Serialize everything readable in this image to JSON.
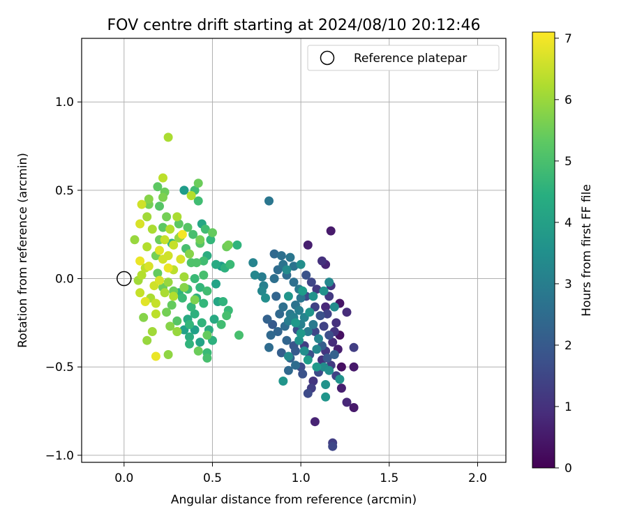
{
  "chart_data": {
    "type": "scatter",
    "title": "FOV centre drift starting at 2024/08/10 20:12:46",
    "xlabel": "Angular distance from reference (arcmin)",
    "ylabel": "Rotation from reference (arcmin)",
    "xlim": [
      -0.24,
      2.16
    ],
    "ylim": [
      -1.04,
      1.36
    ],
    "x_ticks": [
      0.0,
      0.5,
      1.0,
      1.5,
      2.0
    ],
    "x_tick_labels": [
      "0.0",
      "0.5",
      "1.0",
      "1.5",
      "2.0"
    ],
    "y_ticks": [
      -1.0,
      -0.5,
      0.0,
      0.5,
      1.0
    ],
    "y_tick_labels": [
      "−1.0",
      "−0.5",
      "0.0",
      "0.5",
      "1.0"
    ],
    "grid": true,
    "legend": {
      "position": "top-right",
      "label": "Reference platepar"
    },
    "reference_point": {
      "x": 0.0,
      "y": 0.0
    },
    "colorbar": {
      "label": "Hours from first FF file",
      "colormap": "viridis",
      "range": [
        0,
        7.1
      ],
      "ticks": [
        0,
        1,
        2,
        3,
        4,
        5,
        6,
        7
      ],
      "tick_labels": [
        "0",
        "1",
        "2",
        "3",
        "4",
        "5",
        "6",
        "7"
      ]
    },
    "points": [
      [
        1.17,
        0.27,
        0.5
      ],
      [
        1.04,
        0.19,
        0.6
      ],
      [
        1.22,
        -0.14,
        0.4
      ],
      [
        1.22,
        -0.32,
        0.3
      ],
      [
        1.23,
        -0.5,
        0.3
      ],
      [
        1.3,
        -0.5,
        0.5
      ],
      [
        1.23,
        -0.62,
        0.6
      ],
      [
        1.3,
        -0.73,
        0.5
      ],
      [
        1.26,
        -0.7,
        0.8
      ],
      [
        1.3,
        -0.39,
        1.3
      ],
      [
        1.26,
        -0.19,
        0.9
      ],
      [
        1.21,
        -0.4,
        0.6
      ],
      [
        1.08,
        -0.81,
        0.7
      ],
      [
        1.18,
        -0.93,
        1.3
      ],
      [
        1.18,
        -0.95,
        1.5
      ],
      [
        1.14,
        0.08,
        0.7
      ],
      [
        1.12,
        0.1,
        1.0
      ],
      [
        1.17,
        -0.04,
        1.1
      ],
      [
        1.16,
        -0.1,
        1.2
      ],
      [
        1.14,
        -0.16,
        0.8
      ],
      [
        1.09,
        -0.06,
        1.2
      ],
      [
        1.2,
        -0.25,
        1.0
      ],
      [
        1.19,
        -0.3,
        1.1
      ],
      [
        1.18,
        -0.36,
        0.9
      ],
      [
        1.14,
        -0.41,
        1.1
      ],
      [
        1.12,
        -0.46,
        1.0
      ],
      [
        1.17,
        -0.49,
        1.2
      ],
      [
        1.07,
        -0.58,
        1.1
      ],
      [
        1.06,
        -0.62,
        1.3
      ],
      [
        1.04,
        -0.65,
        1.6
      ],
      [
        1.1,
        -0.53,
        1.6
      ],
      [
        1.2,
        -0.55,
        1.4
      ],
      [
        1.15,
        -0.2,
        1.4
      ],
      [
        1.08,
        -0.3,
        1.5
      ],
      [
        1.13,
        -0.27,
        1.4
      ],
      [
        1.02,
        -0.38,
        1.3
      ],
      [
        1.05,
        -0.43,
        1.7
      ],
      [
        1.0,
        -0.5,
        1.6
      ],
      [
        1.01,
        -0.54,
        1.8
      ],
      [
        0.98,
        -0.29,
        1.7
      ],
      [
        1.03,
        -0.1,
        1.6
      ],
      [
        1.06,
        -0.02,
        1.5
      ],
      [
        1.03,
        0.02,
        1.8
      ],
      [
        1.08,
        -0.16,
        1.4
      ],
      [
        1.11,
        -0.21,
        1.8
      ],
      [
        1.16,
        -0.32,
        1.7
      ],
      [
        1.12,
        -0.38,
        2.1
      ],
      [
        1.19,
        -0.43,
        2.2
      ],
      [
        1.15,
        -0.45,
        1.9
      ],
      [
        0.97,
        -0.41,
        2.0
      ],
      [
        0.94,
        -0.45,
        2.2
      ],
      [
        0.97,
        -0.49,
        2.5
      ],
      [
        0.93,
        -0.52,
        2.4
      ],
      [
        0.96,
        -0.38,
        1.9
      ],
      [
        0.92,
        -0.35,
        2.3
      ],
      [
        0.89,
        -0.42,
        2.1
      ],
      [
        0.84,
        -0.26,
        2.0
      ],
      [
        0.81,
        -0.23,
        2.2
      ],
      [
        0.83,
        -0.32,
        2.4
      ],
      [
        0.82,
        -0.39,
        2.5
      ],
      [
        0.87,
        -0.3,
        2.3
      ],
      [
        0.91,
        -0.27,
        2.5
      ],
      [
        0.88,
        -0.2,
        2.4
      ],
      [
        0.9,
        -0.16,
        2.6
      ],
      [
        0.86,
        -0.1,
        2.3
      ],
      [
        0.85,
        0.0,
        2.6
      ],
      [
        0.87,
        0.05,
        2.5
      ],
      [
        0.9,
        0.08,
        2.7
      ],
      [
        0.85,
        0.14,
        2.4
      ],
      [
        0.89,
        0.13,
        2.6
      ],
      [
        0.94,
        0.12,
        2.8
      ],
      [
        0.96,
        0.07,
        2.7
      ],
      [
        0.92,
        0.02,
        2.5
      ],
      [
        0.96,
        -0.02,
        2.6
      ],
      [
        0.99,
        -0.06,
        2.9
      ],
      [
        1.0,
        -0.11,
        2.8
      ],
      [
        0.97,
        -0.15,
        2.7
      ],
      [
        0.94,
        -0.2,
        2.9
      ],
      [
        0.93,
        -0.24,
        3.0
      ],
      [
        0.96,
        -0.22,
        3.1
      ],
      [
        0.99,
        -0.18,
        3.0
      ],
      [
        1.02,
        -0.22,
        3.2
      ],
      [
        1.0,
        -0.26,
        3.1
      ],
      [
        1.04,
        -0.3,
        3.0
      ],
      [
        1.07,
        -0.26,
        2.9
      ],
      [
        1.1,
        -0.34,
        3.2
      ],
      [
        1.09,
        -0.4,
        3.3
      ],
      [
        1.13,
        -0.5,
        3.4
      ],
      [
        1.16,
        -0.52,
        3.5
      ],
      [
        1.14,
        -0.6,
        3.6
      ],
      [
        1.14,
        -0.67,
        3.7
      ],
      [
        1.22,
        -0.57,
        3.6
      ],
      [
        1.16,
        -0.02,
        3.3
      ],
      [
        1.13,
        -0.07,
        3.6
      ],
      [
        1.19,
        -0.16,
        3.4
      ],
      [
        0.73,
        0.09,
        3.2
      ],
      [
        0.74,
        0.02,
        3.3
      ],
      [
        0.78,
        0.01,
        3.0
      ],
      [
        0.79,
        -0.04,
        3.1
      ],
      [
        0.78,
        -0.07,
        3.3
      ],
      [
        0.8,
        -0.11,
        3.5
      ],
      [
        0.82,
        0.44,
        2.8
      ],
      [
        0.9,
        -0.58,
        3.7
      ],
      [
        0.93,
        -0.44,
        3.4
      ],
      [
        0.99,
        -0.35,
        3.6
      ],
      [
        1.0,
        -0.31,
        3.8
      ],
      [
        1.02,
        -0.41,
        3.5
      ],
      [
        1.0,
        0.08,
        3.5
      ],
      [
        0.92,
        0.05,
        3.4
      ],
      [
        0.93,
        -0.1,
        3.7
      ],
      [
        0.97,
        -0.25,
        3.8
      ],
      [
        1.05,
        -0.19,
        3.7
      ],
      [
        1.01,
        -0.07,
        3.9
      ],
      [
        1.07,
        -0.1,
        3.6
      ],
      [
        1.04,
        -0.46,
        3.9
      ],
      [
        1.09,
        -0.5,
        3.8
      ],
      [
        0.42,
        0.54,
        5.5
      ],
      [
        0.4,
        0.5,
        4.9
      ],
      [
        0.34,
        0.5,
        3.9
      ],
      [
        0.42,
        0.44,
        4.9
      ],
      [
        0.44,
        0.31,
        4.2
      ],
      [
        0.49,
        0.22,
        4.7
      ],
      [
        0.47,
        0.13,
        4.4
      ],
      [
        0.52,
        0.08,
        4.3
      ],
      [
        0.57,
        0.06,
        4.5
      ],
      [
        0.55,
        0.07,
        3.9
      ],
      [
        0.52,
        -0.03,
        4.1
      ],
      [
        0.56,
        -0.13,
        4.6
      ],
      [
        0.59,
        -0.18,
        4.8
      ],
      [
        0.58,
        -0.21,
        5.0
      ],
      [
        0.53,
        -0.13,
        4.2
      ],
      [
        0.51,
        -0.23,
        4.3
      ],
      [
        0.48,
        -0.29,
        4.4
      ],
      [
        0.5,
        -0.35,
        4.5
      ],
      [
        0.47,
        -0.42,
        4.8
      ],
      [
        0.47,
        -0.45,
        5.0
      ],
      [
        0.43,
        -0.36,
        4.1
      ],
      [
        0.4,
        -0.29,
        4.0
      ],
      [
        0.37,
        -0.33,
        4.4
      ],
      [
        0.34,
        -0.29,
        4.0
      ],
      [
        0.37,
        -0.37,
        4.6
      ],
      [
        0.36,
        -0.23,
        4.3
      ],
      [
        0.4,
        -0.2,
        4.5
      ],
      [
        0.44,
        -0.25,
        4.6
      ],
      [
        0.45,
        -0.14,
        4.7
      ],
      [
        0.41,
        -0.11,
        4.5
      ],
      [
        0.38,
        -0.16,
        4.7
      ],
      [
        0.33,
        -0.11,
        4.8
      ],
      [
        0.36,
        -0.06,
        4.9
      ],
      [
        0.4,
        0.0,
        4.8
      ],
      [
        0.43,
        -0.05,
        4.7
      ],
      [
        0.47,
        -0.07,
        4.9
      ],
      [
        0.45,
        0.02,
        5.0
      ],
      [
        0.38,
        0.09,
        5.1
      ],
      [
        0.35,
        0.17,
        5.0
      ],
      [
        0.32,
        0.24,
        5.2
      ],
      [
        0.31,
        0.31,
        5.3
      ],
      [
        0.36,
        0.29,
        5.2
      ],
      [
        0.39,
        0.25,
        5.0
      ],
      [
        0.43,
        0.2,
        5.2
      ],
      [
        0.45,
        0.1,
        4.9
      ],
      [
        0.41,
        0.09,
        5.1
      ],
      [
        0.5,
        0.26,
        5.4
      ],
      [
        0.58,
        0.18,
        5.5
      ],
      [
        0.59,
        0.19,
        5.6
      ],
      [
        0.64,
        0.19,
        4.6
      ],
      [
        0.6,
        0.08,
        4.8
      ],
      [
        0.3,
        -0.24,
        5.2
      ],
      [
        0.27,
        -0.15,
        5.4
      ],
      [
        0.24,
        -0.19,
        5.6
      ],
      [
        0.26,
        -0.27,
        5.8
      ],
      [
        0.28,
        -0.07,
        5.5
      ],
      [
        0.22,
        -0.05,
        5.5
      ],
      [
        0.19,
        0.03,
        5.4
      ],
      [
        0.18,
        0.13,
        5.6
      ],
      [
        0.2,
        0.22,
        5.5
      ],
      [
        0.22,
        0.29,
        5.3
      ],
      [
        0.24,
        0.35,
        5.6
      ],
      [
        0.2,
        0.41,
        5.2
      ],
      [
        0.23,
        0.49,
        5.5
      ],
      [
        0.19,
        0.52,
        5.3
      ],
      [
        0.22,
        0.46,
        5.7
      ],
      [
        0.25,
        0.8,
        6.2
      ],
      [
        0.22,
        0.57,
        6.4
      ],
      [
        0.38,
        0.47,
        6.3
      ],
      [
        0.14,
        0.45,
        5.8
      ],
      [
        0.14,
        0.42,
        5.6
      ],
      [
        0.1,
        0.42,
        6.6
      ],
      [
        0.13,
        0.35,
        6.1
      ],
      [
        0.16,
        0.28,
        6.2
      ],
      [
        0.09,
        0.31,
        6.7
      ],
      [
        0.06,
        0.22,
        6.0
      ],
      [
        0.13,
        0.18,
        6.3
      ],
      [
        0.09,
        0.1,
        6.9
      ],
      [
        0.12,
        0.06,
        6.4
      ],
      [
        0.1,
        0.02,
        6.3
      ],
      [
        0.08,
        -0.01,
        6.1
      ],
      [
        0.09,
        -0.08,
        6.5
      ],
      [
        0.12,
        -0.13,
        6.8
      ],
      [
        0.15,
        -0.11,
        6.2
      ],
      [
        0.18,
        -0.2,
        6.4
      ],
      [
        0.16,
        -0.3,
        6.1
      ],
      [
        0.13,
        -0.35,
        6.0
      ],
      [
        0.11,
        -0.22,
        5.8
      ],
      [
        0.18,
        -0.44,
        6.9
      ],
      [
        0.25,
        -0.43,
        5.9
      ],
      [
        0.3,
        -0.3,
        6.0
      ],
      [
        0.28,
        -0.1,
        6.3
      ],
      [
        0.25,
        -0.02,
        6.0
      ],
      [
        0.28,
        0.05,
        6.4
      ],
      [
        0.32,
        0.11,
        6.7
      ],
      [
        0.25,
        0.13,
        6.6
      ],
      [
        0.28,
        0.19,
        6.5
      ],
      [
        0.31,
        0.23,
        6.0
      ],
      [
        0.26,
        0.28,
        6.3
      ],
      [
        0.3,
        0.35,
        6.2
      ],
      [
        0.23,
        0.22,
        6.5
      ],
      [
        0.2,
        0.16,
        6.8
      ],
      [
        0.22,
        0.11,
        6.6
      ],
      [
        0.25,
        0.06,
        6.9
      ],
      [
        0.2,
        -0.01,
        6.7
      ],
      [
        0.23,
        -0.08,
        6.2
      ],
      [
        0.18,
        -0.14,
        6.5
      ],
      [
        0.14,
        0.07,
        6.7
      ],
      [
        0.17,
        -0.04,
        6.6
      ],
      [
        0.34,
        0.01,
        6.1
      ],
      [
        0.37,
        0.14,
        5.8
      ],
      [
        0.33,
        0.25,
        7.0
      ],
      [
        0.34,
        -0.05,
        5.8
      ],
      [
        0.4,
        -0.12,
        5.7
      ],
      [
        0.43,
        0.22,
        5.6
      ],
      [
        0.46,
        0.28,
        4.9
      ],
      [
        0.47,
        -0.32,
        5.4
      ],
      [
        0.42,
        -0.41,
        5.5
      ],
      [
        0.65,
        -0.32,
        5.0
      ],
      [
        0.55,
        -0.26,
        4.9
      ],
      [
        0.3,
        -0.3,
        5.6
      ],
      [
        0.37,
        -0.26,
        4.7
      ],
      [
        0.31,
        -0.08,
        4.6
      ],
      [
        0.27,
        0.2,
        4.7
      ]
    ]
  }
}
